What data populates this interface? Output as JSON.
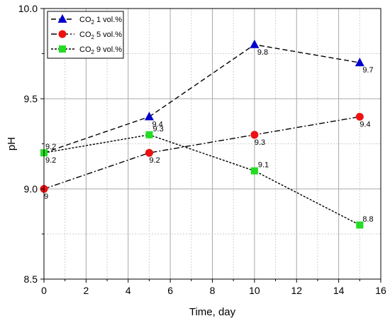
{
  "chart_data": {
    "type": "line",
    "xlabel": "Time, day",
    "ylabel": "pH",
    "xlim": [
      0,
      16
    ],
    "ylim": [
      8.5,
      10.0
    ],
    "x_ticks": [
      0,
      2,
      4,
      6,
      8,
      10,
      12,
      14,
      16
    ],
    "y_ticks": [
      "8.5",
      "9.0",
      "9.5",
      "10.0"
    ],
    "grid": true,
    "legend_position": "top-left",
    "series": [
      {
        "name_prefix": "CO",
        "name_sub": "2",
        "name_suffix": " 1 vol.%",
        "color": "#0000cc",
        "marker": "triangle",
        "dash": "dashed",
        "x": [
          5,
          10,
          15
        ],
        "y": [
          9.4,
          9.8,
          9.7
        ],
        "labels": [
          "9.4",
          "9.8",
          "9.7"
        ]
      },
      {
        "name_prefix": "CO",
        "name_sub": "2",
        "name_suffix": " 5 vol.%",
        "color": "#ee1111",
        "marker": "circle",
        "dash": "dashdot",
        "x": [
          0,
          5,
          10,
          15
        ],
        "y": [
          9.0,
          9.2,
          9.3,
          9.4
        ],
        "labels": [
          "9",
          "9.2",
          "9.3",
          "9.4"
        ]
      },
      {
        "name_prefix": "CO",
        "name_sub": "2",
        "name_suffix": " 9 vol.%",
        "color": "#22dd22",
        "marker": "square",
        "dash": "dotted",
        "x": [
          0,
          5,
          10,
          15
        ],
        "y": [
          9.2,
          9.3,
          9.1,
          8.8
        ],
        "labels": [
          "9.2",
          "9.3",
          "9.1",
          "8.8"
        ]
      }
    ],
    "extra_line": {
      "x": [
        0,
        5
      ],
      "y": [
        9.2,
        9.4
      ],
      "label": "9.2"
    }
  }
}
